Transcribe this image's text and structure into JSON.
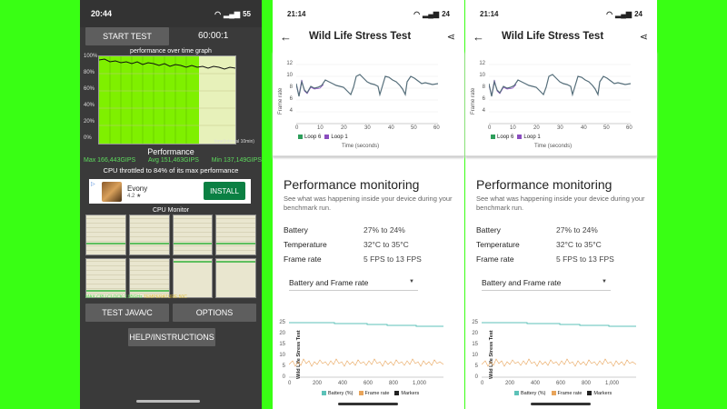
{
  "left_phone": {
    "status": {
      "time": "20:44",
      "battery": "55"
    },
    "start_test_label": "START TEST",
    "timer": "60:00:1",
    "graph_title": "performance over time graph",
    "y_labels": [
      "100%",
      "80%",
      "60%",
      "40%",
      "20%",
      "0%"
    ],
    "time_label": "time(interval 10min)",
    "performance_title": "Performance",
    "stats": {
      "max": "Max 166,443GIPS",
      "avg": "Avg 151,463GIPS",
      "min": "Min 137,149GIPS"
    },
    "throttle_text": "CPU throttled to 84% of its max performance",
    "ad": {
      "name": "Evony",
      "rating": "4.2 ★",
      "install_label": "INSTALL",
      "info": "▷"
    },
    "cpu_monitor_title": "CPU Monitor",
    "cpu_info_left": "MAX CPU CLOCK:2.85GHz",
    "cpu_info_temp": "TEMPERATURE:50C",
    "java_label": "TEST JAVA/C",
    "options_label": "OPTIONS",
    "help_label": "HELP/INSTRUCTIONS"
  },
  "wl_phones": [
    {
      "status": {
        "time": "21:14",
        "battery": "24"
      },
      "title": "Wild Life Stress Test",
      "chart1": {
        "ylabel": "Frame rate",
        "xlabel": "Time (seconds)",
        "y_ticks": [
          "12",
          "10",
          "8",
          "6",
          "4"
        ],
        "x_ticks": [
          "0",
          "10",
          "20",
          "30",
          "40",
          "50",
          "60"
        ],
        "legend": [
          "Loop 6",
          "Loop 1"
        ]
      },
      "pm_title": "Performance monitoring",
      "pm_sub": "See what was happening inside your device during your benchmark run.",
      "rows": [
        {
          "label": "Battery",
          "value": "27% to 24%"
        },
        {
          "label": "Temperature",
          "value": "32°C to 35°C"
        },
        {
          "label": "Frame rate",
          "value": "5 FPS to 13 FPS"
        }
      ],
      "dropdown": "Battery and Frame rate",
      "chart2": {
        "ylabel": "Wild Life Stress Test",
        "y_ticks": [
          "25",
          "20",
          "15",
          "10",
          "5",
          "0"
        ],
        "x_ticks": [
          "0",
          "200",
          "400",
          "600",
          "800",
          "1,000"
        ],
        "legend": [
          "Battery (%)",
          "Frame rate",
          "Markers"
        ]
      }
    },
    {
      "status": {
        "time": "21:14",
        "battery": "24"
      },
      "title": "Wild Life Stress Test",
      "chart1": {
        "ylabel": "Frame rate",
        "xlabel": "Time (seconds)",
        "y_ticks": [
          "12",
          "10",
          "8",
          "6",
          "4"
        ],
        "x_ticks": [
          "0",
          "10",
          "20",
          "30",
          "40",
          "50",
          "60"
        ],
        "legend": [
          "Loop 6",
          "Loop 1"
        ]
      },
      "pm_title": "Performance monitoring",
      "pm_sub": "See what was happening inside your device during your benchmark run.",
      "rows": [
        {
          "label": "Battery",
          "value": "27% to 24%"
        },
        {
          "label": "Temperature",
          "value": "32°C to 35°C"
        },
        {
          "label": "Frame rate",
          "value": "5 FPS to 13 FPS"
        }
      ],
      "dropdown": "Battery and Frame rate",
      "chart2": {
        "ylabel": "Wild Life Stress Test",
        "y_ticks": [
          "25",
          "20",
          "15",
          "10",
          "5",
          "0"
        ],
        "x_ticks": [
          "0",
          "200",
          "400",
          "600",
          "800",
          "1,000"
        ],
        "legend": [
          "Battery (%)",
          "Frame rate",
          "Markers"
        ]
      }
    }
  ],
  "colors": {
    "green_bg": "#39ff14",
    "loop6": "#2e9e5b",
    "loop1": "#8a4dbf",
    "battery": "#5cc2b8",
    "framerate": "#e8a45a",
    "markers": "#222222",
    "install": "#0b8043"
  }
}
